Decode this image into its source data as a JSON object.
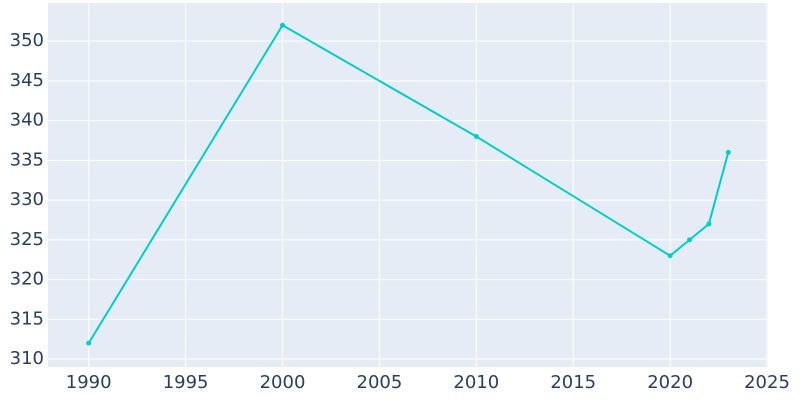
{
  "chart_data": {
    "type": "line",
    "x": [
      1990,
      2000,
      2010,
      2020,
      2021,
      2022,
      2023
    ],
    "series": [
      {
        "color": "#00cccc",
        "values": [
          312,
          352,
          338,
          323,
          325,
          327,
          336
        ]
      }
    ],
    "xlim": [
      1987.9,
      2025.05
    ],
    "ylim": [
      309,
      354.8
    ],
    "xticks": [
      1990,
      1995,
      2000,
      2005,
      2010,
      2015,
      2020,
      2025
    ],
    "yticks": [
      310,
      315,
      320,
      325,
      330,
      335,
      340,
      345,
      350
    ],
    "grid": true,
    "background": "#e5ecf6"
  }
}
